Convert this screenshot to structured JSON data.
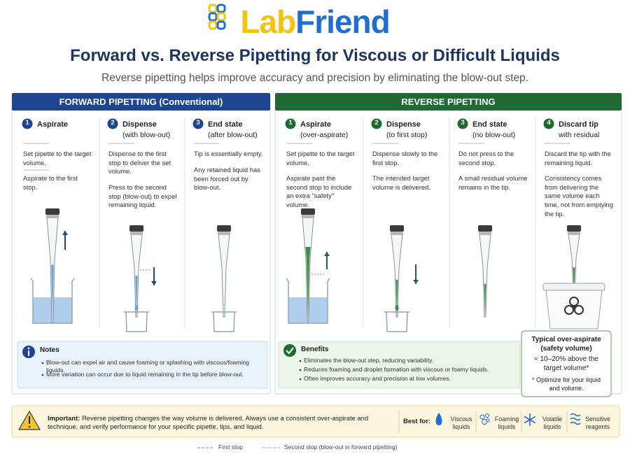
{
  "logo": {
    "part1": "Lab",
    "part2": "Friend"
  },
  "title": "Forward vs. Reverse Pipetting for Viscous or Difficult Liquids",
  "subtitle": "Reverse pipetting helps improve accuracy and precision by eliminating the blow-out step.",
  "forward": {
    "header": "FORWARD PIPETTING (Conventional)",
    "steps": [
      {
        "number": "1",
        "title": "Aspirate",
        "texts": [
          "Set pipette to the target volume.",
          "Aspirate to the first stop."
        ]
      },
      {
        "number": "2",
        "title": "Dispense",
        "subtitle": "(with blow-out)",
        "texts": [
          "Dispense to the first stop to deliver the set volume.",
          "Press to the second stop (blow-out) to expel remaining liquid."
        ]
      },
      {
        "number": "3",
        "title": "End state",
        "subtitle": "(after blow-out)",
        "texts": [
          "Tip is essentially empty.",
          "Any retained liquid has been forced out by blow-out."
        ]
      }
    ],
    "notes": {
      "title": "Notes",
      "items": [
        "Blow-out can expel air and cause foaming or splashing with viscous/foaming liquids.",
        "More variation can occur due to liquid remaining in the tip before blow-out."
      ]
    }
  },
  "reverse": {
    "header": "REVERSE PIPETTING",
    "steps": [
      {
        "number": "1",
        "title": "Aspirate",
        "subtitle": "(over-aspirate)",
        "texts": [
          "Set pipette to the target volume.",
          "Aspirate past the second stop to include an extra \"safety\" volume."
        ]
      },
      {
        "number": "2",
        "title": "Dispense",
        "subtitle": "(to first stop)",
        "texts": [
          "Dispense slowly to the first stop.",
          "The intended target volume is delivered."
        ]
      },
      {
        "number": "3",
        "title": "End state",
        "subtitle": "(no blow-out)",
        "texts": [
          "Do not press to the second stop.",
          "A small residual volume remains in the tip."
        ]
      },
      {
        "number": "4",
        "title": "Discard tip",
        "subtitle": "with residual",
        "texts": [
          "Discard the tip with the remaining liquid.",
          "Consistency comes from delivering the same volume each time, not from emptying the tip."
        ]
      }
    ],
    "benefits": {
      "title": "Benefits",
      "items": [
        "Eliminates the blow-out step, reducing variability.",
        "Reduces foaming and droplet formation with viscous or foamy liquids.",
        "Often improves accuracy and precision at low volumes."
      ]
    },
    "callout": {
      "title": "Typical over-aspirate (safety volume)",
      "value": "≈ 10–20% above the target volume*",
      "note": "* Optimize for your liquid and volume."
    }
  },
  "important": {
    "label": "Important:",
    "text": "Reverse pipetting changes the way volume is delivered. Always use a consistent over-aspirate and technique, and verify performance for your specific pipette, tips, and liquid."
  },
  "best_for": {
    "label": "Best for:",
    "items": [
      "Viscous liquids",
      "Foaming liquids",
      "Volatile liquids",
      "Sensitive reagents"
    ]
  },
  "legend": [
    "First stop",
    "Second stop (blow-out in forward pipetting)"
  ]
}
